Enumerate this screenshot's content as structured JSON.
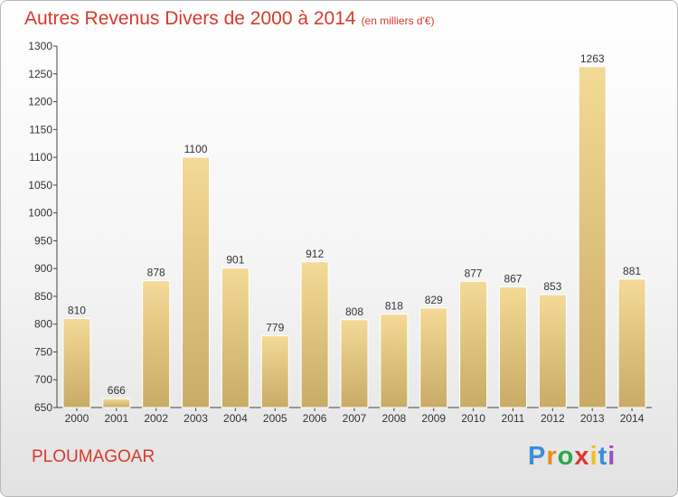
{
  "header": {
    "title": "Autres Revenus Divers de 2000 à 2014",
    "unit": "(en milliers d'€)"
  },
  "footer": {
    "commune": "PLOUMAGOAR",
    "logo_letters": [
      "P",
      "r",
      "o",
      "x",
      "i",
      "t",
      "i"
    ],
    "logo_colors": [
      "#3a8fd6",
      "#f08a1c",
      "#2aa84a",
      "#d8392b",
      "#f0c01c",
      "#3a8fd6",
      "#9b4fc4"
    ]
  },
  "chart_data": {
    "type": "bar",
    "title": "Autres Revenus Divers de 2000 à 2014",
    "xlabel": "",
    "ylabel": "",
    "categories": [
      "2000",
      "2001",
      "2002",
      "2003",
      "2004",
      "2005",
      "2006",
      "2007",
      "2008",
      "2009",
      "2010",
      "2011",
      "2012",
      "2013",
      "2014"
    ],
    "values": [
      810,
      666,
      878,
      1100,
      901,
      779,
      912,
      808,
      818,
      829,
      877,
      867,
      853,
      1263,
      881
    ],
    "ylim": [
      650,
      1300
    ],
    "yticks": [
      650,
      700,
      750,
      800,
      850,
      900,
      950,
      1000,
      1050,
      1100,
      1150,
      1200,
      1250,
      1300
    ],
    "grid": false,
    "legend": "none",
    "bar_color": "#e6c67e"
  }
}
